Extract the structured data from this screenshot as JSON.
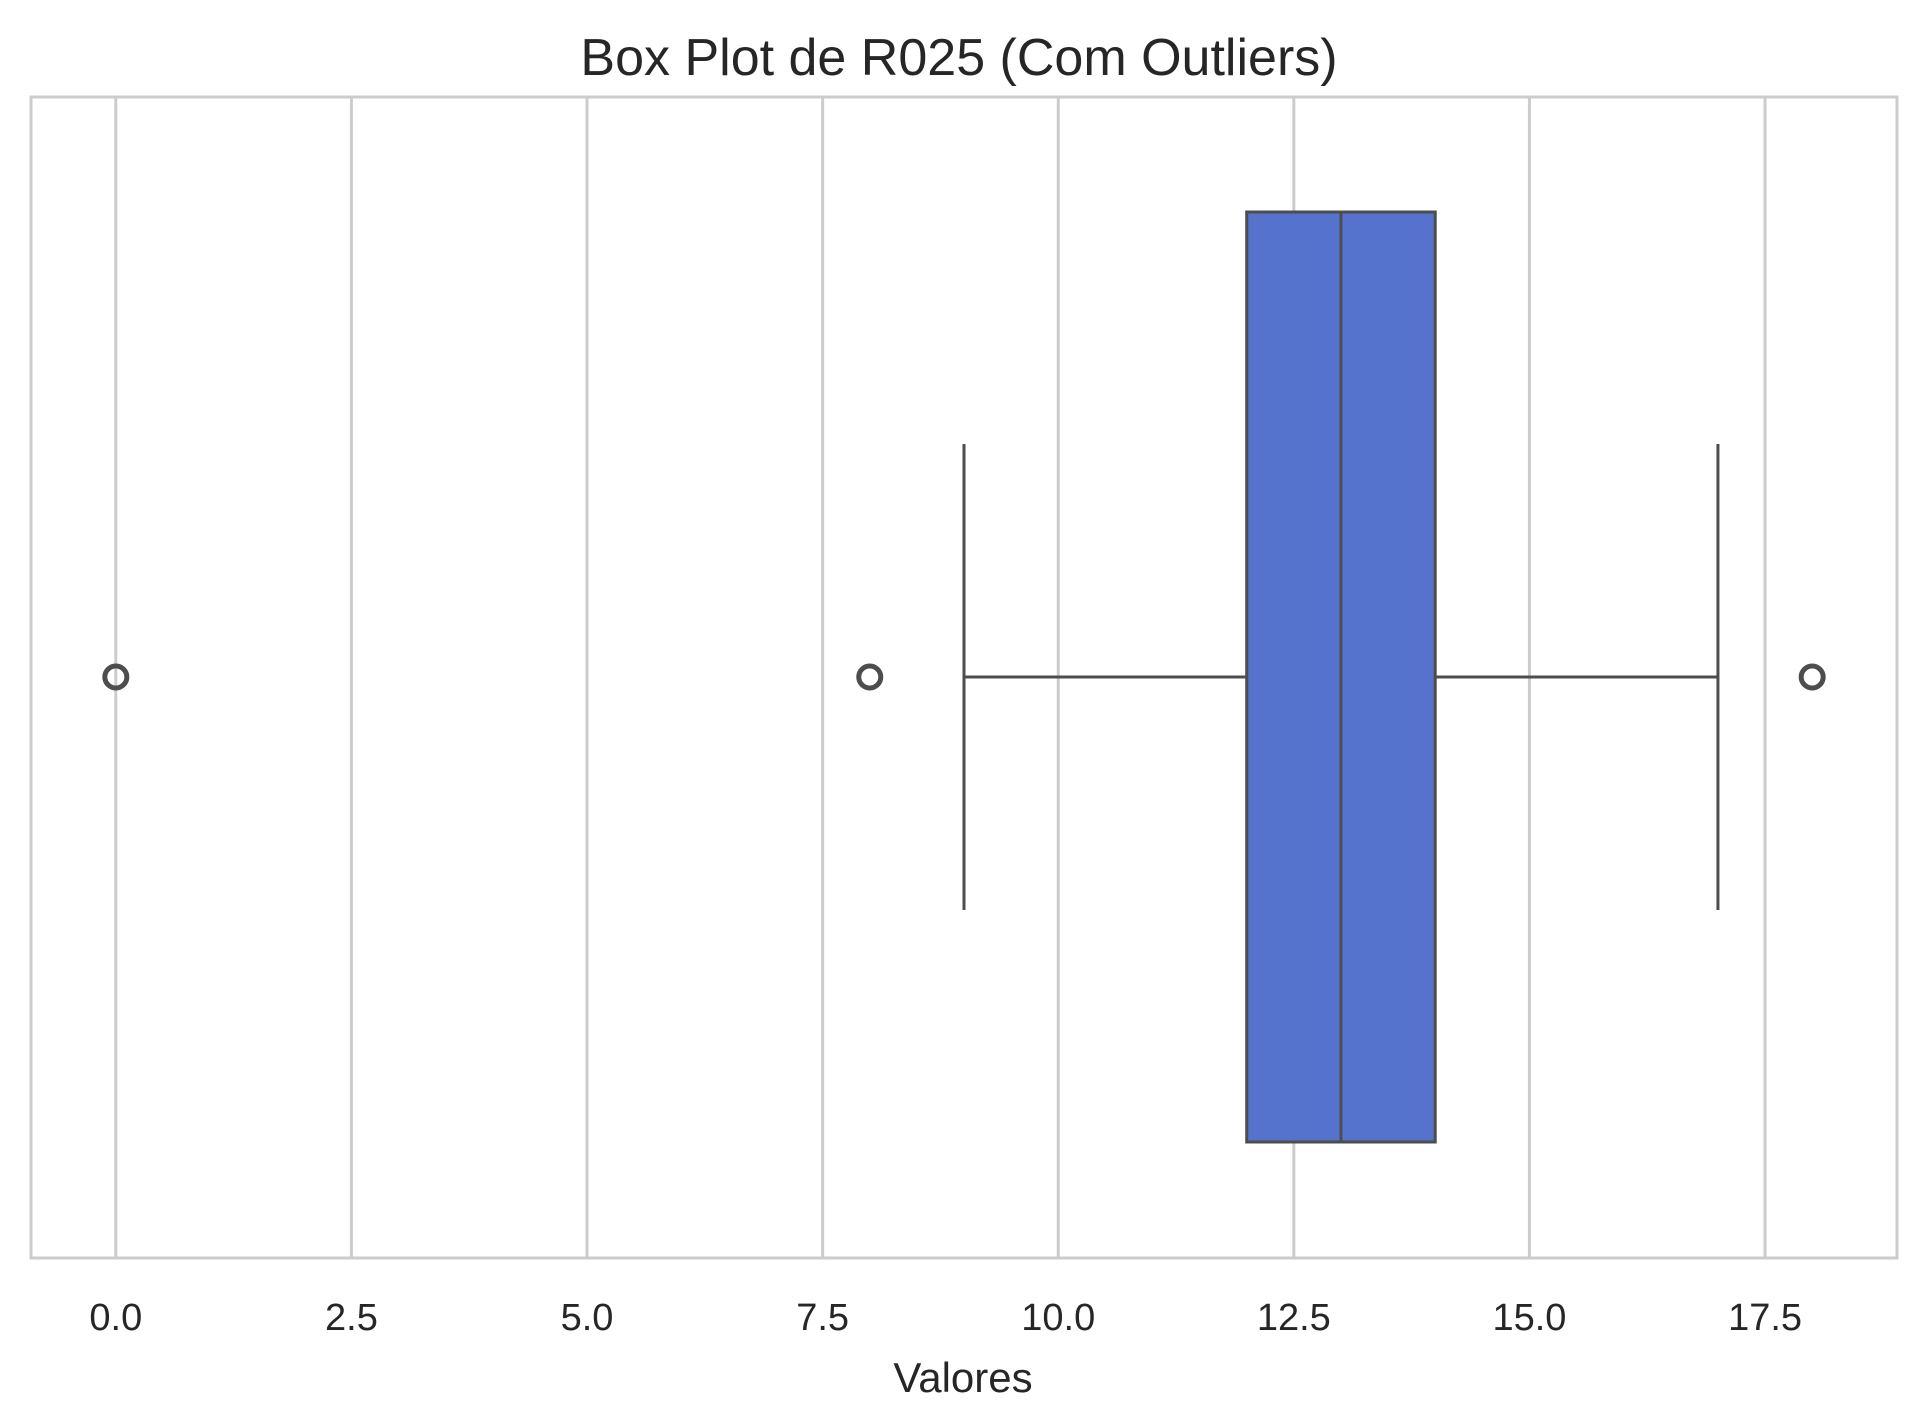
{
  "chart_data": {
    "type": "box",
    "orientation": "horizontal",
    "title": "Box Plot de R025 (Com Outliers)",
    "xlabel": "Valores",
    "ylabel": "",
    "xlim": [
      -0.9,
      18.9
    ],
    "xticks": [
      0.0,
      2.5,
      5.0,
      7.5,
      10.0,
      12.5,
      15.0,
      17.5
    ],
    "xtick_labels": [
      "0.0",
      "2.5",
      "5.0",
      "7.5",
      "10.0",
      "12.5",
      "15.0",
      "17.5"
    ],
    "grid": true,
    "box": {
      "whisker_low": 9,
      "q1": 12,
      "median": 13,
      "q3": 14,
      "whisker_high": 17,
      "outliers": [
        0,
        8,
        18
      ]
    },
    "colors": {
      "box_fill": "#5573cd",
      "box_edge": "#4d4d4d",
      "grid": "#cccccc",
      "frame": "#cccccc"
    }
  }
}
